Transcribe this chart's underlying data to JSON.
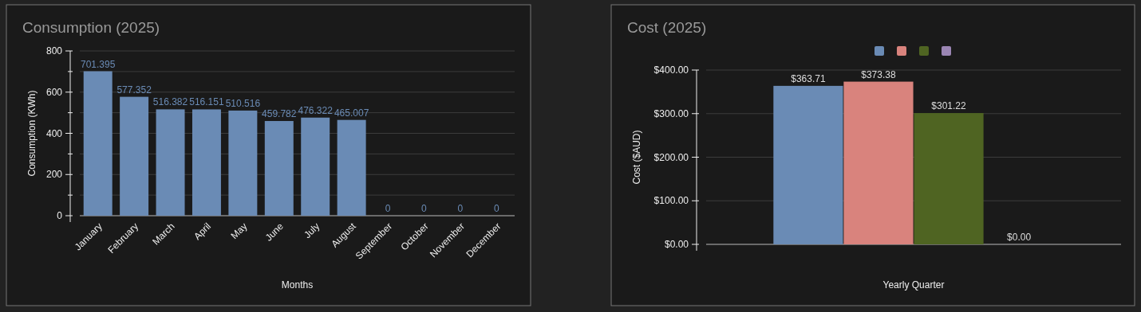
{
  "chart_data": [
    {
      "type": "bar",
      "title": "Consumption (2025)",
      "xlabel": "Months",
      "ylabel": "Consumption (KWh)",
      "categories": [
        "January",
        "February",
        "March",
        "April",
        "May",
        "June",
        "July",
        "August",
        "September",
        "October",
        "November",
        "December"
      ],
      "values": [
        701.395,
        577.352,
        516.382,
        516.151,
        510.516,
        459.782,
        476.322,
        465.007,
        0,
        0,
        0,
        0
      ],
      "color": "#6a8bb5",
      "ylim": [
        0,
        800
      ],
      "yticks": [
        0,
        {
          "value": 100,
          "label": null
        },
        200,
        {
          "value": 300,
          "label": null
        },
        400,
        {
          "value": 500,
          "label": null
        },
        600,
        {
          "value": 700,
          "label": null
        },
        800
      ],
      "grid": true,
      "data_labels": true
    },
    {
      "type": "bar",
      "title": "Cost (2025)",
      "xlabel": "Yearly Quarter",
      "ylabel": "Cost ($AUD)",
      "categories": [
        null
      ],
      "series": [
        {
          "color": "#6a8bb5",
          "values": [
            363.71
          ],
          "value_labels": [
            "$363.71"
          ]
        },
        {
          "color": "#d9837d",
          "values": [
            373.38
          ],
          "value_labels": [
            "$373.38"
          ]
        },
        {
          "color": "#4f6422",
          "values": [
            301.22
          ],
          "value_labels": [
            "$301.22"
          ]
        },
        {
          "color": "#9b86b4",
          "values": [
            0
          ],
          "value_labels": [
            "$0.00"
          ]
        }
      ],
      "ylim": [
        0,
        400
      ],
      "yticks": [
        {
          "value": 0,
          "label": "$0.00"
        },
        {
          "value": 100,
          "label": "$100.00"
        },
        {
          "value": 200,
          "label": "$200.00"
        },
        {
          "value": 300,
          "label": "$300.00"
        },
        {
          "value": 400,
          "label": "$400.00"
        }
      ],
      "grid": true
    }
  ]
}
